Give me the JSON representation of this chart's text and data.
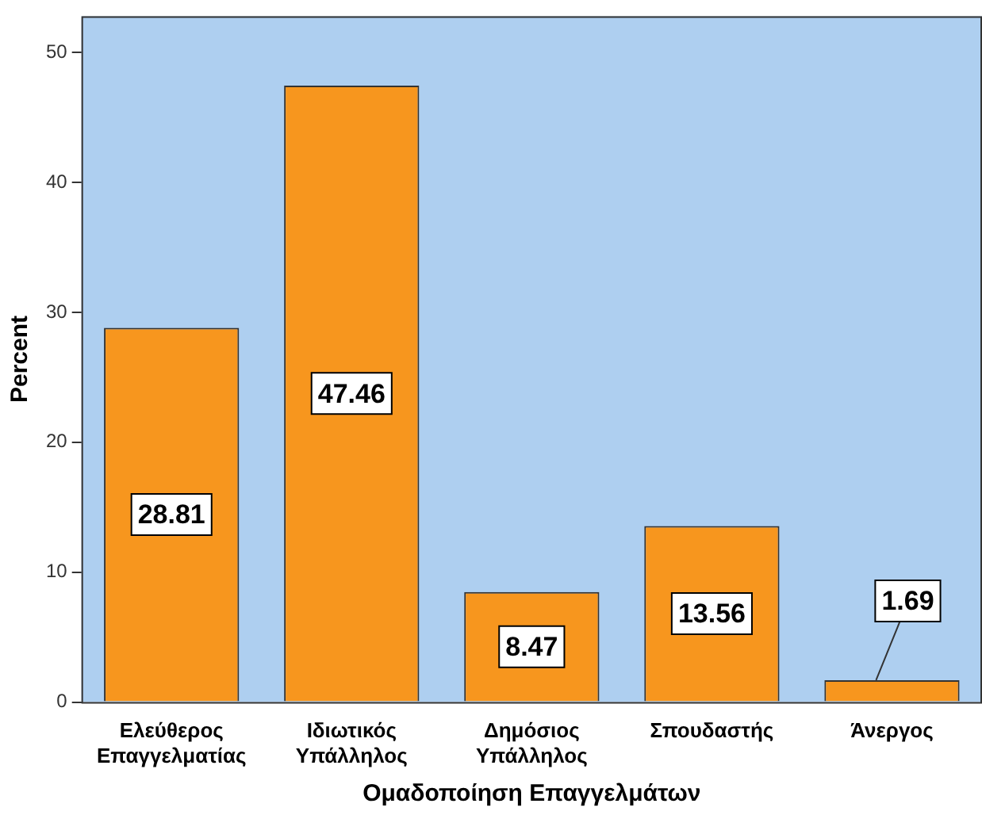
{
  "chart_data": {
    "type": "bar",
    "xlabel": "Ομαδοποίηση Επαγγελμάτων",
    "ylabel": "Percent",
    "categories": [
      "Ελεύθερος Επαγγελματίας",
      "Ιδιωτικός Υπάλληλος",
      "Δημόσιος Υπάλληλος",
      "Σπουδαστής",
      "Άνεργος"
    ],
    "values": [
      28.81,
      47.46,
      8.47,
      13.56,
      1.69
    ],
    "color": "#f7961e",
    "ylim": [
      0,
      52.8
    ],
    "yticks": [
      0,
      10,
      20,
      30,
      40,
      50
    ],
    "grid": false,
    "legend": false,
    "data_labels": true
  }
}
